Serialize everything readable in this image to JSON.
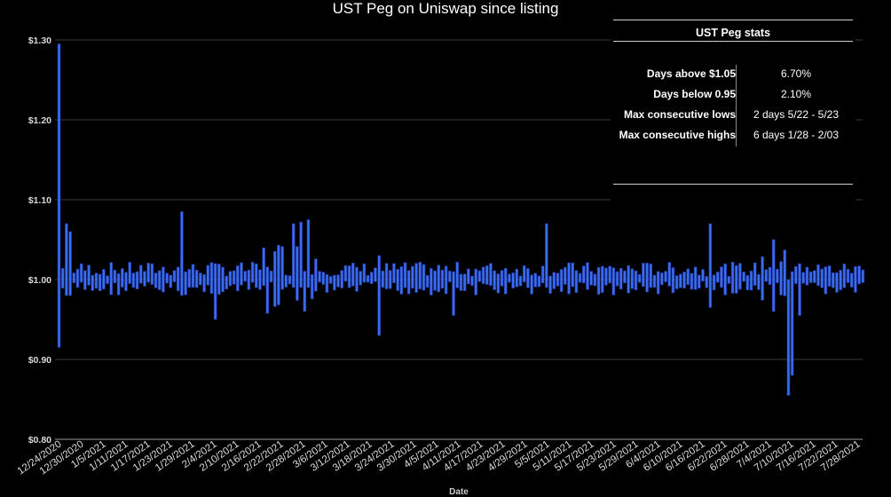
{
  "title": "UST Peg on Uniswap since listing",
  "chart_data": {
    "type": "bar",
    "subtype": "high-low range bars",
    "title": "UST Peg on Uniswap since listing",
    "xlabel": "Date",
    "ylabel": "",
    "ylim": [
      0.8,
      1.3
    ],
    "y_ticks": [
      "$0.80",
      "$0.90",
      "$1.00",
      "$1.10",
      "$1.20",
      "$1.30"
    ],
    "y_tick_values": [
      0.8,
      0.9,
      1.0,
      1.1,
      1.2,
      1.3
    ],
    "x_tick_labels": [
      "12/24/2020",
      "12/30/2020",
      "1/5/2021",
      "1/11/2021",
      "1/17/2021",
      "1/23/2021",
      "1/29/2021",
      "2/4/2021",
      "2/10/2021",
      "2/16/2021",
      "2/22/2021",
      "2/28/2021",
      "3/6/2021",
      "3/12/2021",
      "3/18/2021",
      "3/24/2021",
      "3/30/2021",
      "4/5/2021",
      "4/11/2021",
      "4/17/2021",
      "4/23/2021",
      "4/29/2021",
      "5/5/2021",
      "5/11/2021",
      "5/17/2021",
      "5/23/2021",
      "5/29/2021",
      "6/4/2021",
      "6/10/2021",
      "6/16/2021",
      "6/22/2021",
      "6/28/2021",
      "7/4/2021",
      "7/10/2021",
      "7/16/2021",
      "7/22/2021",
      "7/28/2021"
    ],
    "grid": true,
    "legend": "none",
    "series": [
      {
        "color": "#3b6cf0"
      }
    ]
  },
  "stats": {
    "title": "UST Peg stats",
    "rows": [
      {
        "label": "Days above $1.05",
        "value": "6.70%"
      },
      {
        "label": "Days below 0.95",
        "value": "2.10%"
      },
      {
        "label": "Max consecutive lows",
        "value": "2 days 5/22 - 5/23"
      },
      {
        "label": "Max consecutive highs",
        "value": "6 days 1/28 - 2/03"
      }
    ]
  },
  "colors": {
    "background": "#000000",
    "bar": "#3b6cf0",
    "bar_edge": "#1b2f8f",
    "grid": "#3a3a3a",
    "text": "#ffffff"
  }
}
